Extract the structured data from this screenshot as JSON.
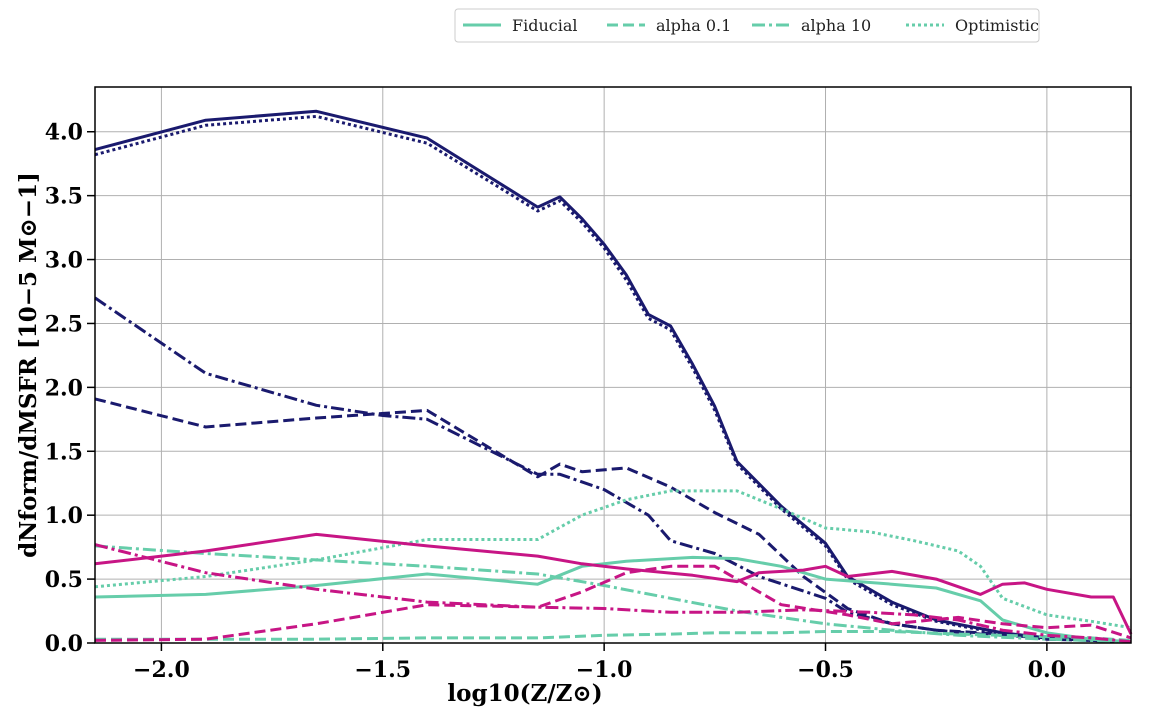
{
  "chart_data": {
    "type": "line",
    "xlabel": "log10(Z/Z⊙)",
    "ylabel": "dNform/dMSFR [10−5 M⊙−1]",
    "xlim": [
      -2.15,
      0.19
    ],
    "ylim": [
      0,
      4.35
    ],
    "xticks": [
      -2.0,
      -1.5,
      -1.0,
      -0.5,
      0.0
    ],
    "xtick_labels": [
      "−2.0",
      "−1.5",
      "−1.0",
      "−0.5",
      "0.0"
    ],
    "yticks": [
      0.0,
      0.5,
      1.0,
      1.5,
      2.0,
      2.5,
      3.0,
      3.5,
      4.0
    ],
    "ytick_labels": [
      "0.0",
      "0.5",
      "1.0",
      "1.5",
      "2.0",
      "2.5",
      "3.0",
      "3.5",
      "4.0"
    ],
    "grid": true,
    "legend_position": "top-center, outside",
    "legend": [
      {
        "label": "Fiducial",
        "dash": "solid"
      },
      {
        "label": "alpha 0.1",
        "dash": "dashed"
      },
      {
        "label": "alpha 10",
        "dash": "dashdot"
      },
      {
        "label": "Optimistic",
        "dash": "dotted"
      }
    ],
    "colors": {
      "navy": "#1a1a6e",
      "teal": "#66cdaa",
      "magenta": "#c71585"
    },
    "series": [
      {
        "color": "#1a1a6e",
        "dash": "solid",
        "points": [
          [
            -2.15,
            3.86
          ],
          [
            -1.9,
            4.09
          ],
          [
            -1.65,
            4.16
          ],
          [
            -1.4,
            3.95
          ],
          [
            -1.15,
            3.41
          ],
          [
            -1.1,
            3.49
          ],
          [
            -1.05,
            3.32
          ],
          [
            -1.0,
            3.12
          ],
          [
            -0.95,
            2.88
          ],
          [
            -0.9,
            2.57
          ],
          [
            -0.85,
            2.48
          ],
          [
            -0.8,
            2.18
          ],
          [
            -0.75,
            1.85
          ],
          [
            -0.7,
            1.42
          ],
          [
            -0.6,
            1.07
          ],
          [
            -0.5,
            0.78
          ],
          [
            -0.45,
            0.52
          ],
          [
            -0.35,
            0.32
          ],
          [
            -0.25,
            0.18
          ],
          [
            -0.1,
            0.08
          ],
          [
            0.0,
            0.04
          ],
          [
            0.1,
            0.02
          ],
          [
            0.19,
            0.01
          ]
        ]
      },
      {
        "color": "#1a1a6e",
        "dash": "dotted",
        "points": [
          [
            -2.15,
            3.82
          ],
          [
            -1.9,
            4.05
          ],
          [
            -1.65,
            4.12
          ],
          [
            -1.4,
            3.91
          ],
          [
            -1.15,
            3.38
          ],
          [
            -1.1,
            3.46
          ],
          [
            -1.05,
            3.29
          ],
          [
            -1.0,
            3.09
          ],
          [
            -0.95,
            2.84
          ],
          [
            -0.9,
            2.54
          ],
          [
            -0.85,
            2.45
          ],
          [
            -0.8,
            2.15
          ],
          [
            -0.75,
            1.82
          ],
          [
            -0.7,
            1.4
          ],
          [
            -0.6,
            1.05
          ],
          [
            -0.5,
            0.76
          ],
          [
            -0.45,
            0.5
          ],
          [
            -0.35,
            0.3
          ],
          [
            -0.25,
            0.17
          ],
          [
            -0.1,
            0.07
          ],
          [
            0.0,
            0.04
          ],
          [
            0.1,
            0.02
          ],
          [
            0.19,
            0.01
          ]
        ]
      },
      {
        "color": "#1a1a6e",
        "dash": "dashdot",
        "points": [
          [
            -2.15,
            2.7
          ],
          [
            -1.9,
            2.11
          ],
          [
            -1.65,
            1.86
          ],
          [
            -1.5,
            1.78
          ],
          [
            -1.4,
            1.75
          ],
          [
            -1.15,
            1.32
          ],
          [
            -1.1,
            1.32
          ],
          [
            -1.0,
            1.2
          ],
          [
            -0.9,
            1.0
          ],
          [
            -0.85,
            0.8
          ],
          [
            -0.75,
            0.7
          ],
          [
            -0.65,
            0.52
          ],
          [
            -0.5,
            0.35
          ],
          [
            -0.45,
            0.24
          ],
          [
            -0.35,
            0.15
          ],
          [
            -0.25,
            0.1
          ],
          [
            -0.15,
            0.07
          ],
          [
            0.0,
            0.04
          ],
          [
            0.1,
            0.02
          ],
          [
            0.19,
            0.01
          ]
        ]
      },
      {
        "color": "#1a1a6e",
        "dash": "dashed",
        "points": [
          [
            -2.15,
            1.91
          ],
          [
            -1.9,
            1.69
          ],
          [
            -1.65,
            1.76
          ],
          [
            -1.4,
            1.82
          ],
          [
            -1.15,
            1.3
          ],
          [
            -1.1,
            1.4
          ],
          [
            -1.05,
            1.34
          ],
          [
            -0.95,
            1.37
          ],
          [
            -0.85,
            1.22
          ],
          [
            -0.75,
            1.02
          ],
          [
            -0.65,
            0.85
          ],
          [
            -0.55,
            0.52
          ],
          [
            -0.45,
            0.27
          ],
          [
            -0.35,
            0.15
          ],
          [
            -0.25,
            0.1
          ],
          [
            -0.1,
            0.07
          ],
          [
            0.0,
            0.03
          ],
          [
            0.1,
            0.02
          ],
          [
            0.19,
            0.01
          ]
        ]
      },
      {
        "color": "#66cdaa",
        "dash": "solid",
        "points": [
          [
            -2.15,
            0.36
          ],
          [
            -1.9,
            0.38
          ],
          [
            -1.65,
            0.45
          ],
          [
            -1.4,
            0.54
          ],
          [
            -1.15,
            0.46
          ],
          [
            -1.05,
            0.6
          ],
          [
            -0.95,
            0.64
          ],
          [
            -0.8,
            0.67
          ],
          [
            -0.7,
            0.66
          ],
          [
            -0.6,
            0.6
          ],
          [
            -0.5,
            0.5
          ],
          [
            -0.35,
            0.46
          ],
          [
            -0.25,
            0.43
          ],
          [
            -0.15,
            0.33
          ],
          [
            -0.1,
            0.18
          ],
          [
            0.0,
            0.08
          ],
          [
            0.1,
            0.03
          ],
          [
            0.19,
            0.01
          ]
        ]
      },
      {
        "color": "#66cdaa",
        "dash": "dashed",
        "points": [
          [
            -2.15,
            0.03
          ],
          [
            -1.9,
            0.03
          ],
          [
            -1.65,
            0.03
          ],
          [
            -1.4,
            0.04
          ],
          [
            -1.15,
            0.04
          ],
          [
            -1.0,
            0.06
          ],
          [
            -0.85,
            0.07
          ],
          [
            -0.75,
            0.08
          ],
          [
            -0.6,
            0.08
          ],
          [
            -0.5,
            0.09
          ],
          [
            -0.35,
            0.09
          ],
          [
            -0.2,
            0.07
          ],
          [
            0.0,
            0.05
          ],
          [
            0.1,
            0.04
          ],
          [
            0.19,
            0.02
          ]
        ]
      },
      {
        "color": "#66cdaa",
        "dash": "dashdot",
        "points": [
          [
            -2.15,
            0.76
          ],
          [
            -1.9,
            0.7
          ],
          [
            -1.65,
            0.65
          ],
          [
            -1.4,
            0.6
          ],
          [
            -1.15,
            0.54
          ],
          [
            -1.0,
            0.45
          ],
          [
            -0.85,
            0.35
          ],
          [
            -0.7,
            0.25
          ],
          [
            -0.5,
            0.15
          ],
          [
            -0.35,
            0.1
          ],
          [
            -0.2,
            0.06
          ],
          [
            0.0,
            0.03
          ],
          [
            0.19,
            0.01
          ]
        ]
      },
      {
        "color": "#66cdaa",
        "dash": "dotted",
        "points": [
          [
            -2.15,
            0.44
          ],
          [
            -1.9,
            0.52
          ],
          [
            -1.65,
            0.65
          ],
          [
            -1.4,
            0.81
          ],
          [
            -1.15,
            0.81
          ],
          [
            -1.05,
            1.0
          ],
          [
            -0.95,
            1.12
          ],
          [
            -0.85,
            1.19
          ],
          [
            -0.75,
            1.19
          ],
          [
            -0.7,
            1.19
          ],
          [
            -0.6,
            1.05
          ],
          [
            -0.5,
            0.9
          ],
          [
            -0.4,
            0.87
          ],
          [
            -0.3,
            0.8
          ],
          [
            -0.2,
            0.72
          ],
          [
            -0.15,
            0.6
          ],
          [
            -0.1,
            0.35
          ],
          [
            0.0,
            0.22
          ],
          [
            0.1,
            0.17
          ],
          [
            0.19,
            0.12
          ]
        ]
      },
      {
        "color": "#c71585",
        "dash": "solid",
        "points": [
          [
            -2.15,
            0.62
          ],
          [
            -1.9,
            0.72
          ],
          [
            -1.65,
            0.85
          ],
          [
            -1.4,
            0.76
          ],
          [
            -1.15,
            0.68
          ],
          [
            -1.05,
            0.62
          ],
          [
            -0.95,
            0.58
          ],
          [
            -0.8,
            0.53
          ],
          [
            -0.7,
            0.48
          ],
          [
            -0.65,
            0.55
          ],
          [
            -0.55,
            0.57
          ],
          [
            -0.5,
            0.6
          ],
          [
            -0.45,
            0.52
          ],
          [
            -0.35,
            0.56
          ],
          [
            -0.25,
            0.5
          ],
          [
            -0.15,
            0.38
          ],
          [
            -0.1,
            0.46
          ],
          [
            -0.05,
            0.47
          ],
          [
            0.0,
            0.42
          ],
          [
            0.1,
            0.36
          ],
          [
            0.15,
            0.36
          ],
          [
            0.19,
            0.07
          ]
        ]
      },
      {
        "color": "#c71585",
        "dash": "dashed",
        "points": [
          [
            -2.15,
            0.02
          ],
          [
            -1.9,
            0.03
          ],
          [
            -1.65,
            0.15
          ],
          [
            -1.4,
            0.3
          ],
          [
            -1.15,
            0.28
          ],
          [
            -1.05,
            0.4
          ],
          [
            -0.95,
            0.55
          ],
          [
            -0.85,
            0.6
          ],
          [
            -0.75,
            0.6
          ],
          [
            -0.6,
            0.3
          ],
          [
            -0.45,
            0.22
          ],
          [
            -0.35,
            0.15
          ],
          [
            -0.2,
            0.2
          ],
          [
            -0.1,
            0.15
          ],
          [
            0.0,
            0.12
          ],
          [
            0.1,
            0.14
          ],
          [
            0.19,
            0.04
          ]
        ]
      },
      {
        "color": "#c71585",
        "dash": "dashdot",
        "points": [
          [
            -2.15,
            0.77
          ],
          [
            -1.9,
            0.55
          ],
          [
            -1.65,
            0.42
          ],
          [
            -1.4,
            0.32
          ],
          [
            -1.15,
            0.28
          ],
          [
            -1.0,
            0.27
          ],
          [
            -0.85,
            0.24
          ],
          [
            -0.7,
            0.24
          ],
          [
            -0.55,
            0.26
          ],
          [
            -0.4,
            0.24
          ],
          [
            -0.3,
            0.22
          ],
          [
            -0.2,
            0.18
          ],
          [
            -0.1,
            0.1
          ],
          [
            0.0,
            0.06
          ],
          [
            0.1,
            0.04
          ],
          [
            0.19,
            0.01
          ]
        ]
      }
    ]
  }
}
